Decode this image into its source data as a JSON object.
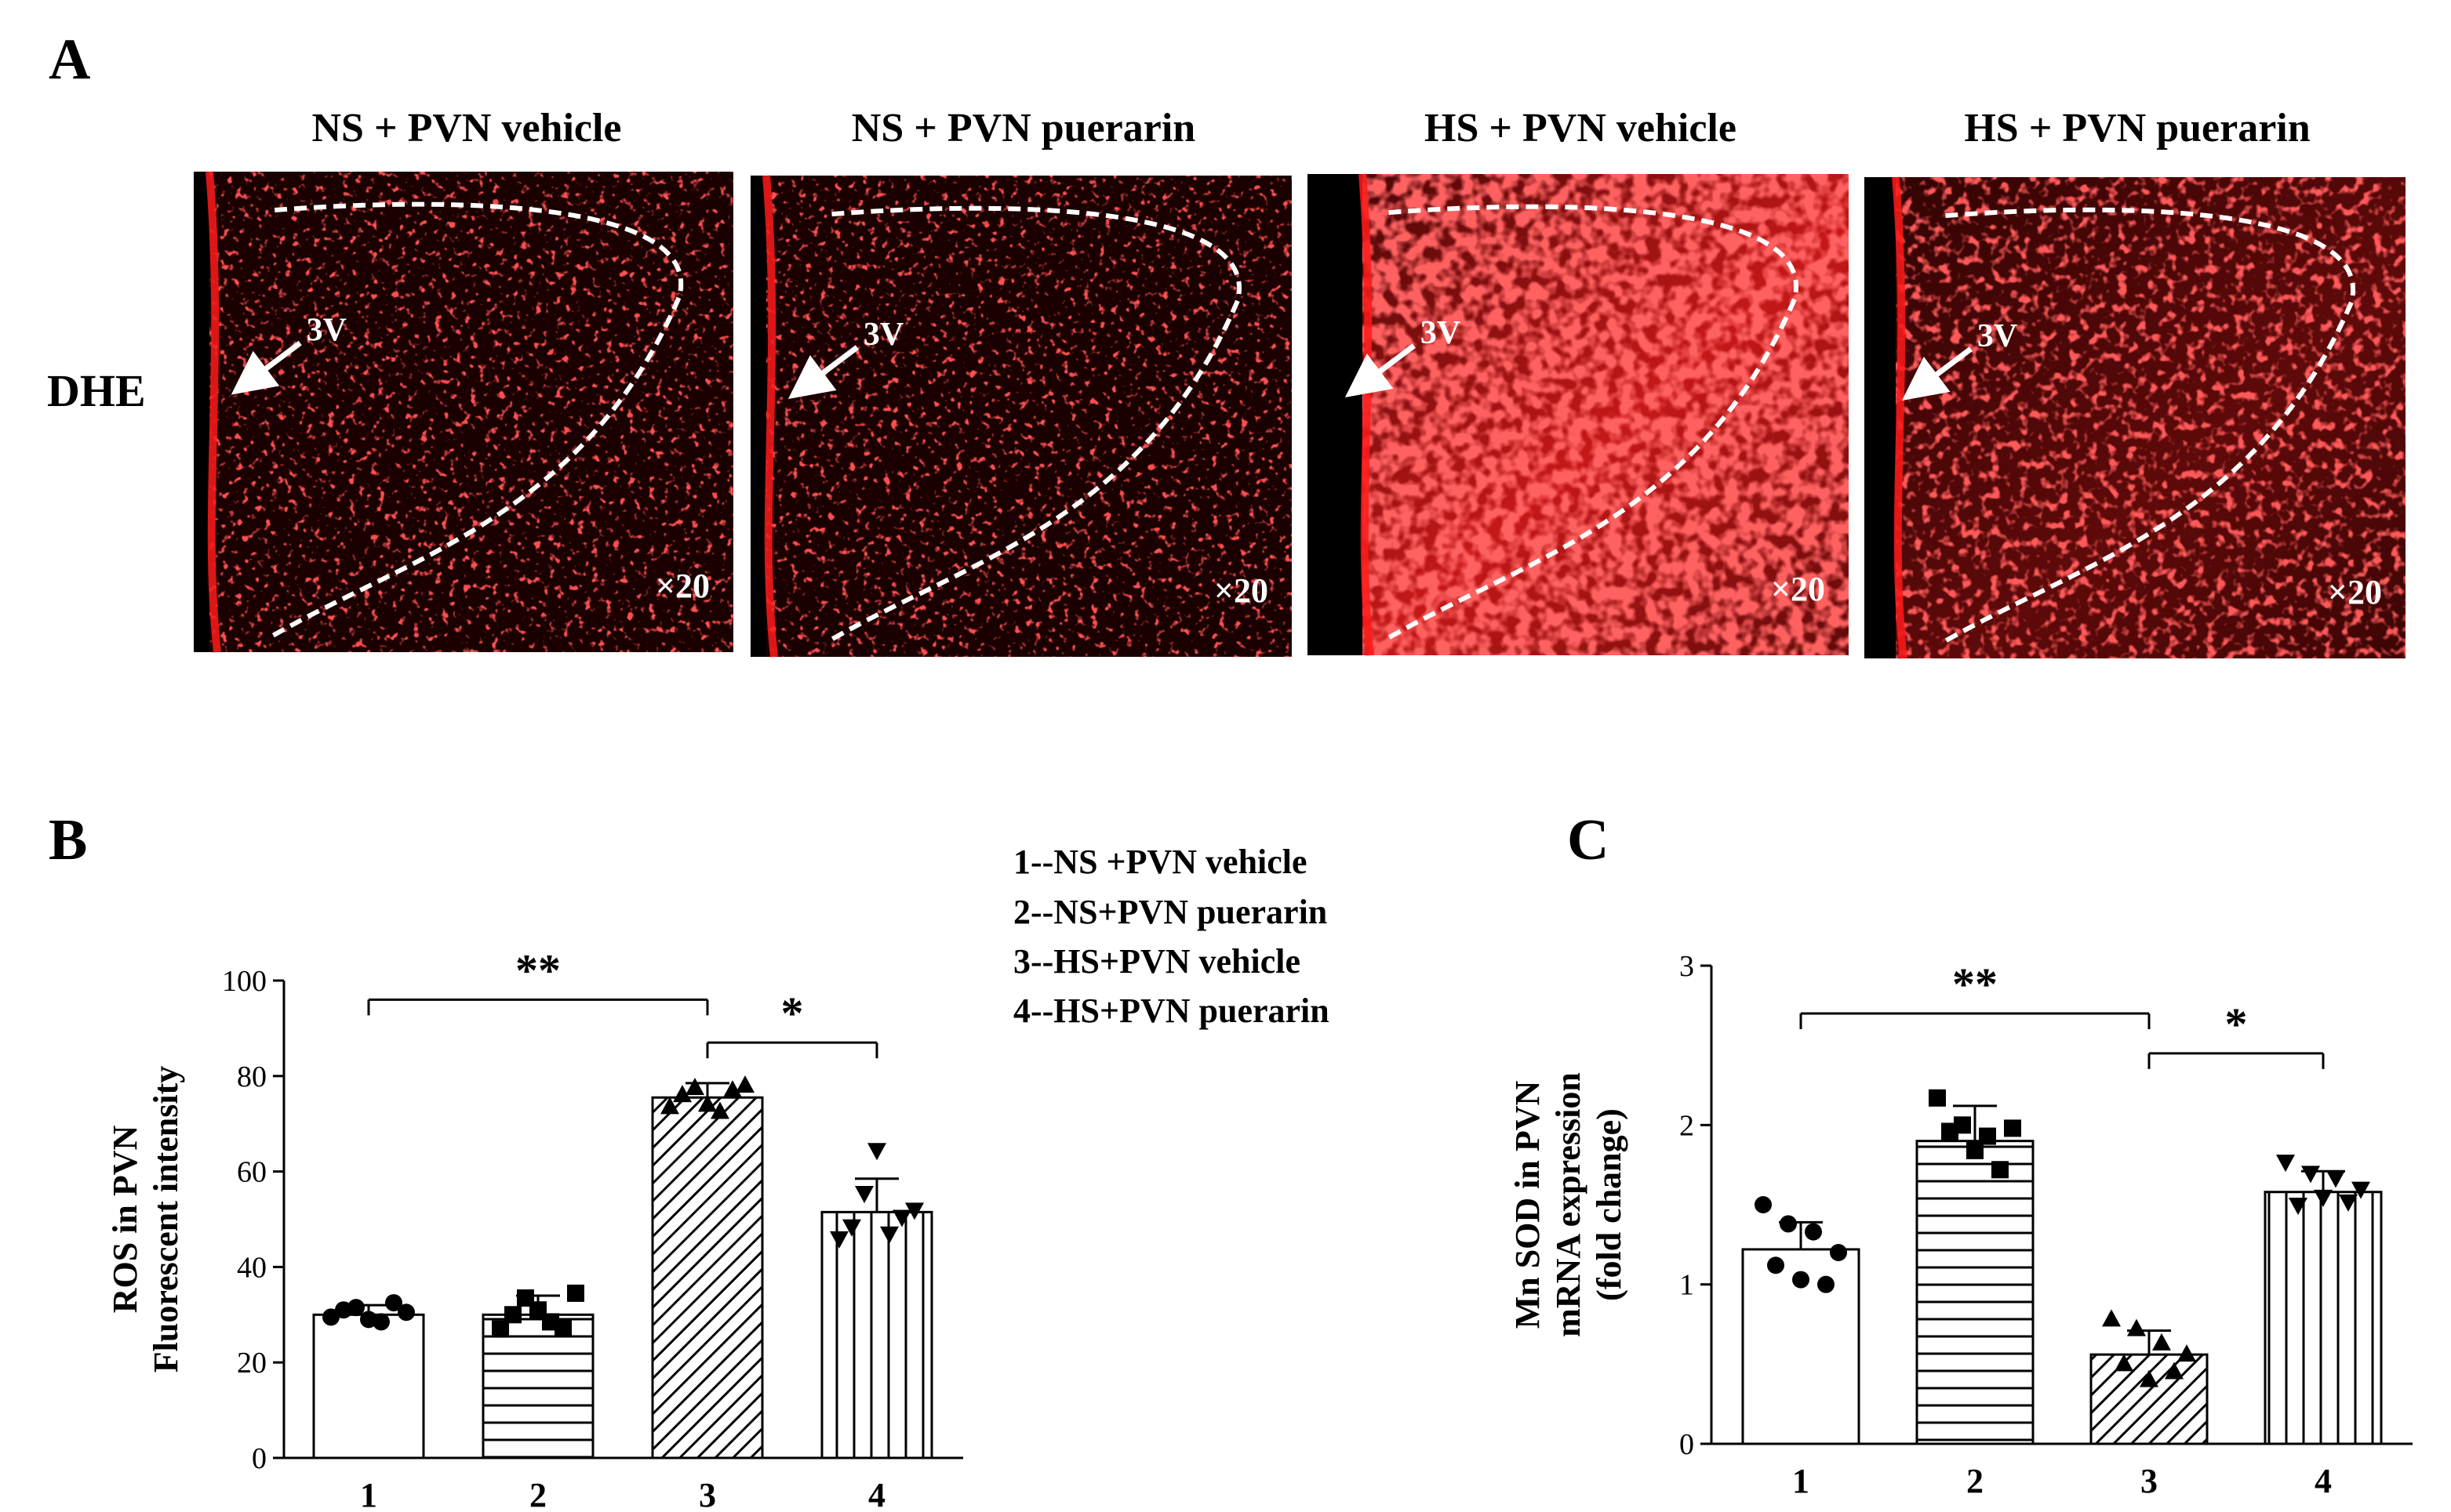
{
  "panel_a": {
    "letter": "A",
    "row_label": "DHE",
    "images": [
      {
        "title": "NS + PVN vehicle",
        "ventricle_label": "3V",
        "magnification": "×20",
        "intensity": "low"
      },
      {
        "title": "NS + PVN puerarin",
        "ventricle_label": "3V",
        "magnification": "×20",
        "intensity": "low"
      },
      {
        "title": "HS + PVN vehicle",
        "ventricle_label": "3V",
        "magnification": "×20",
        "intensity": "high"
      },
      {
        "title": "HS + PVN puerarin",
        "ventricle_label": "3V",
        "magnification": "×20",
        "intensity": "medium"
      }
    ],
    "colors": {
      "stain": "#ff1a1a",
      "background": "#1a0000"
    }
  },
  "legend": {
    "items": [
      "1--NS +PVN vehicle",
      "2--NS+PVN puerarin",
      "3--HS+PVN vehicle",
      "4--HS+PVN puerarin"
    ]
  },
  "chart_data": [
    {
      "panel": "B",
      "type": "bar",
      "categories": [
        "1",
        "2",
        "3",
        "4"
      ],
      "values": [
        30,
        30,
        75.5,
        51.5
      ],
      "error": [
        2,
        4,
        3,
        7
      ],
      "patterns": [
        "none",
        "horizontal",
        "diagonal",
        "vertical"
      ],
      "markers": [
        "circle",
        "square",
        "triangle-up",
        "triangle-down"
      ],
      "points": [
        [
          29.5,
          31.5,
          28.5,
          30.5,
          31,
          29,
          32.5
        ],
        [
          27,
          33.5,
          28.5,
          34.5,
          30,
          31,
          27.5
        ],
        [
          73.5,
          77.5,
          72.5,
          78,
          76,
          74,
          77
        ],
        [
          46,
          55.5,
          47,
          52,
          48.5,
          64.5,
          50.5
        ]
      ],
      "ylabel_lines": [
        "ROS in PVN",
        "Fluorescent intensity"
      ],
      "ylim": [
        0,
        100
      ],
      "yticks": [
        0,
        20,
        40,
        60,
        80,
        100
      ],
      "significance": [
        {
          "from": "1",
          "to": "3",
          "label": "**",
          "y": 96
        },
        {
          "from": "3",
          "to": "4",
          "label": "*",
          "y": 87
        }
      ]
    },
    {
      "panel": "C",
      "type": "bar",
      "categories": [
        "1",
        "2",
        "3",
        "4"
      ],
      "values": [
        1.22,
        1.9,
        0.56,
        1.58
      ],
      "error": [
        0.17,
        0.22,
        0.15,
        0.13
      ],
      "patterns": [
        "none",
        "horizontal",
        "diagonal",
        "vertical"
      ],
      "markers": [
        "circle",
        "square",
        "triangle-up",
        "triangle-down"
      ],
      "points": [
        [
          1.5,
          1.38,
          1.33,
          1.2,
          1.12,
          1.03,
          1.0
        ],
        [
          2.17,
          2.0,
          1.93,
          1.98,
          1.96,
          1.84,
          1.72
        ],
        [
          0.78,
          0.72,
          0.63,
          0.56,
          0.5,
          0.4,
          0.45
        ],
        [
          1.77,
          1.7,
          1.67,
          1.6,
          1.5,
          1.55,
          1.52
        ]
      ],
      "ylabel_lines": [
        "Mn SOD in PVN",
        "mRNA expression",
        "(fold change)"
      ],
      "ylim": [
        0,
        3
      ],
      "yticks": [
        0,
        1,
        2,
        3
      ],
      "significance": [
        {
          "from": "1",
          "to": "3",
          "label": "**",
          "y": 2.7
        },
        {
          "from": "3",
          "to": "4",
          "label": "*",
          "y": 2.45
        }
      ]
    }
  ]
}
